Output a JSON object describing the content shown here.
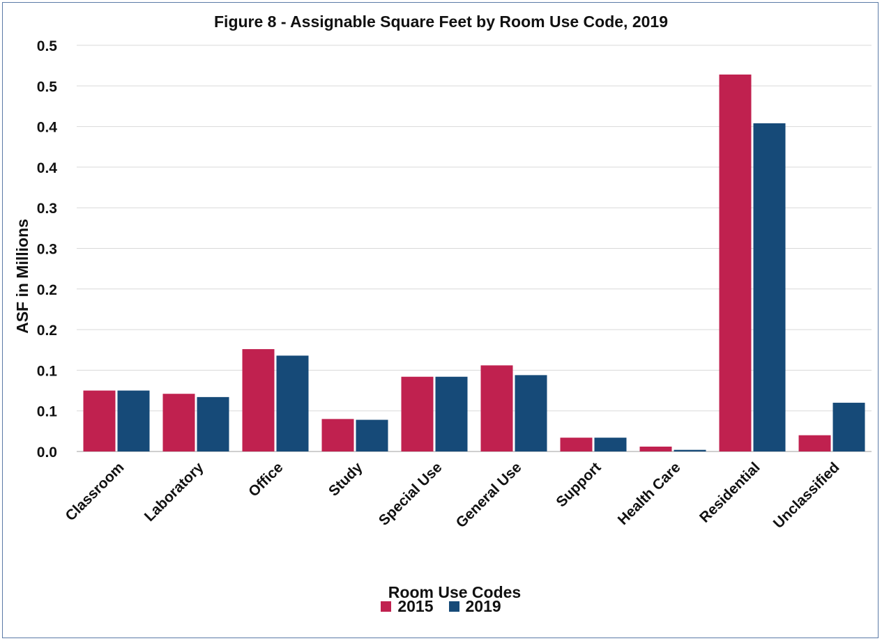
{
  "colors": {
    "series_2015": "#c0214f",
    "series_2019": "#164a78",
    "grid": "#d9d9d9",
    "axis": "#bfbfbf",
    "text": "#111111"
  },
  "chart_data": {
    "type": "bar",
    "title": "Figure 8 - Assignable Square Feet by Room Use Code, 2019",
    "xlabel": "Room Use Codes",
    "ylabel": "ASF in Millions",
    "categories": [
      "Classroom",
      "Laboratory",
      "Office",
      "Study",
      "Special Use",
      "General Use",
      "Support",
      "Health Care",
      "Residential",
      "Unclassified"
    ],
    "series": [
      {
        "name": "2015",
        "values": [
          0.075,
          0.071,
          0.126,
          0.04,
          0.092,
          0.106,
          0.017,
          0.006,
          0.464,
          0.02
        ]
      },
      {
        "name": "2019",
        "values": [
          0.075,
          0.067,
          0.118,
          0.039,
          0.092,
          0.094,
          0.017,
          0.002,
          0.404,
          0.06
        ]
      }
    ],
    "ylim": [
      0,
      0.5
    ],
    "yticks": [
      0,
      0.05,
      0.1,
      0.15,
      0.2,
      0.25,
      0.3,
      0.35,
      0.4,
      0.45,
      0.5
    ],
    "ytick_labels": [
      "0.0",
      "0.1",
      "0.1",
      "0.2",
      "0.2",
      "0.3",
      "0.3",
      "0.4",
      "0.4",
      "0.5",
      "0.5"
    ],
    "grid": true,
    "legend_position": "bottom"
  }
}
